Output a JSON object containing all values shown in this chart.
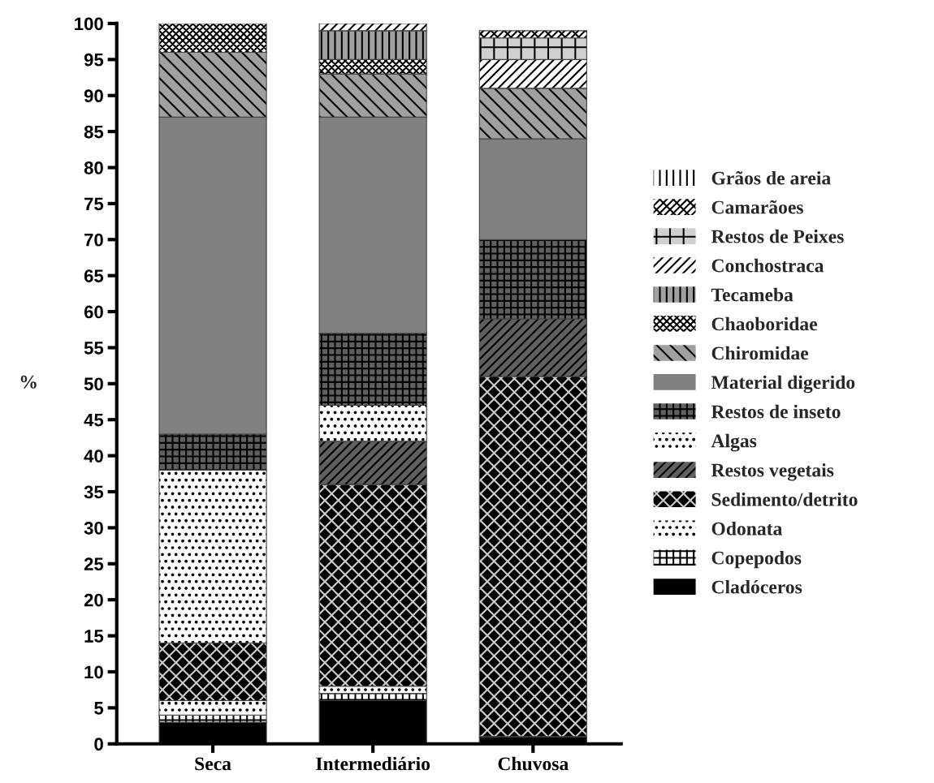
{
  "chart_data": {
    "type": "bar",
    "stacked": true,
    "ylabel": "%",
    "categories": [
      "Seca",
      "Intermediário",
      "Chuvosa"
    ],
    "ylim": [
      0,
      100
    ],
    "yticks": [
      0,
      5,
      10,
      15,
      20,
      25,
      30,
      35,
      40,
      45,
      50,
      55,
      60,
      65,
      70,
      75,
      80,
      85,
      90,
      95,
      100
    ],
    "grid": false,
    "legend": "right",
    "series": [
      {
        "name": "Cladóceros",
        "color": "#000000",
        "values": [
          3,
          6,
          1
        ]
      },
      {
        "name": "Copepodos",
        "color": "#ffffff",
        "values": [
          1,
          1,
          0
        ]
      },
      {
        "name": "Odonata",
        "color": "#ffffff",
        "values": [
          2,
          1,
          0
        ]
      },
      {
        "name": "Sedimento/detrito",
        "color": "#000000",
        "values": [
          8,
          28,
          50
        ]
      },
      {
        "name": "Restos vegetais",
        "color": "#606060",
        "values": [
          0,
          6,
          8
        ]
      },
      {
        "name": "Algas",
        "color": "#ffffff",
        "values": [
          24,
          5,
          0
        ]
      },
      {
        "name": "Restos de inseto",
        "color": "#606060",
        "values": [
          5,
          10,
          11
        ]
      },
      {
        "name": "Material digerido",
        "color": "#808080",
        "values": [
          44,
          30,
          14
        ]
      },
      {
        "name": "Chiromidae",
        "color": "#a0a0a0",
        "values": [
          9,
          6,
          7
        ]
      },
      {
        "name": "Chaoboridae",
        "color": "#ffffff",
        "values": [
          4,
          2,
          0
        ]
      },
      {
        "name": "Tecameba",
        "color": "#a0a0a0",
        "values": [
          0,
          4,
          0
        ]
      },
      {
        "name": "Conchostraca",
        "color": "#ffffff",
        "values": [
          0,
          1,
          4
        ]
      },
      {
        "name": "Restos de Peixes",
        "color": "#d0d0d0",
        "values": [
          0,
          0,
          3
        ]
      },
      {
        "name": "Camarãoes",
        "color": "#ffffff",
        "values": [
          0,
          0,
          1
        ]
      },
      {
        "name": "Grãos de areia",
        "color": "#ffffff",
        "values": [
          0,
          0,
          0
        ]
      }
    ]
  }
}
